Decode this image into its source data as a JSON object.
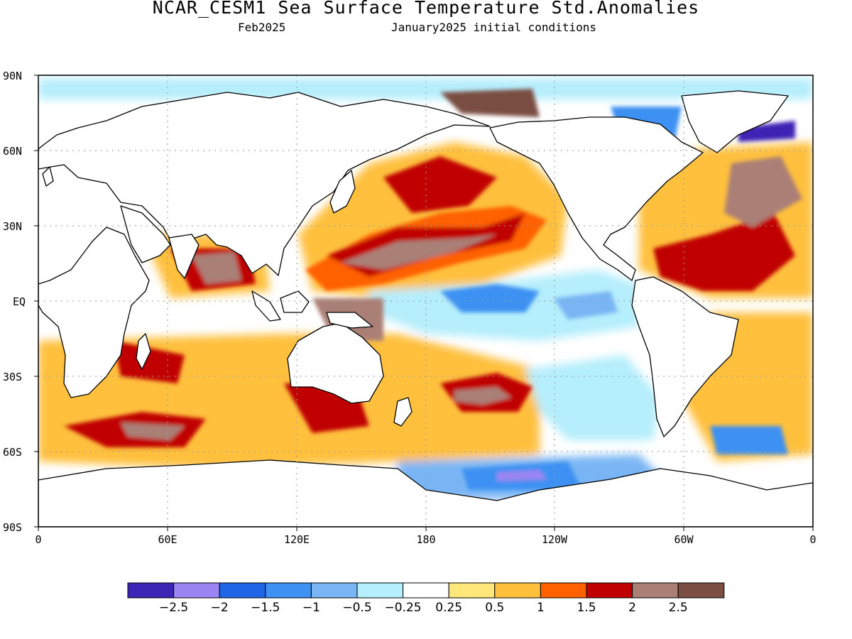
{
  "header": {
    "title": "NCAR_CESM1 Sea Surface Temperature Std.Anomalies",
    "valid_month": "Feb2025",
    "initial_conditions": "January2025 initial conditions"
  },
  "map": {
    "lat_labels": [
      "90N",
      "60N",
      "30N",
      "EQ",
      "30S",
      "60S",
      "90S"
    ],
    "lon_labels": [
      "0",
      "60E",
      "120E",
      "180",
      "120W",
      "60W",
      "0"
    ],
    "colors": {
      "land": "#ffffff",
      "coast": "#000000",
      "grid": "#9a9a9a"
    },
    "anomaly_regions": [
      {
        "level": "2.5",
        "lon": 190,
        "lat": 35,
        "note": "NW Pacific warm core"
      },
      {
        "level": "2",
        "lon": 200,
        "lat": 40,
        "note": "N Pacific warm band"
      },
      {
        "level": "1",
        "lon": 215,
        "lat": 50,
        "note": "NE Pacific"
      },
      {
        "level": "-1",
        "lon": 220,
        "lat": 0,
        "note": "equatorial Pacific cool tongue"
      },
      {
        "level": "-0.5",
        "lon": 250,
        "lat": -10,
        "note": "eastern tropical Pacific"
      },
      {
        "level": "2",
        "lon": 320,
        "lat": 35,
        "note": "N Atlantic warm"
      },
      {
        "level": "2.5",
        "lon": 210,
        "lat": 78,
        "note": "Arctic warm patch"
      },
      {
        "level": "-2",
        "lon": 345,
        "lat": 70,
        "note": "Nordic seas cool"
      },
      {
        "level": "2",
        "lon": 60,
        "lat": -45,
        "note": "S Indian warm"
      },
      {
        "level": "2.5",
        "lon": 225,
        "lat": -37,
        "note": "S Pacific warm blob"
      },
      {
        "level": "-1.5",
        "lon": 215,
        "lat": -70,
        "note": "Southern Ocean cool"
      }
    ]
  },
  "colorbar": {
    "colors": [
      "#3c24b4",
      "#9b85f3",
      "#1f66e6",
      "#3e91f2",
      "#79b5f4",
      "#b5eefc",
      "#ffffff",
      "#ffe779",
      "#ffc03c",
      "#ff6000",
      "#c00000",
      "#aa7f76",
      "#7a4e43"
    ],
    "labels": [
      "-2.5",
      "-2",
      "-1.5",
      "-1",
      "-0.5",
      "-0.25",
      "0.25",
      "0.5",
      "1",
      "1.5",
      "2",
      "2.5"
    ]
  }
}
